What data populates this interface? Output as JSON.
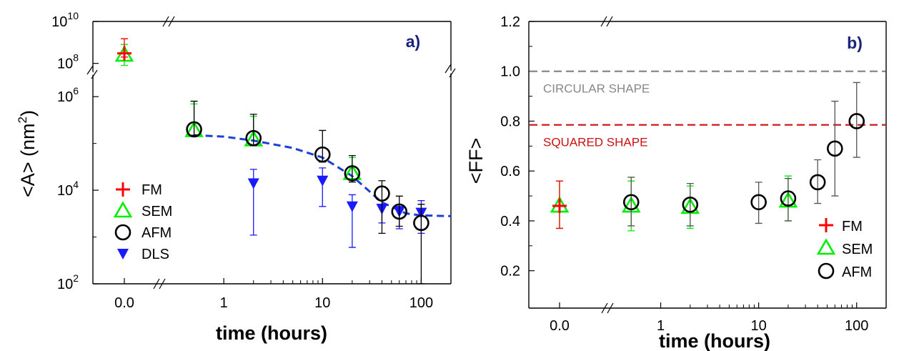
{
  "chart_data": [
    {
      "type": "scatter",
      "panel_label": "a)",
      "xlabel": "time (hours)",
      "ylabel": "<A> (nm",
      "ylabel_sup": "2",
      "ylabel_close": ")",
      "x_scale": "log",
      "x_axis_break": true,
      "x_zero_label": "0.0",
      "xlim": [
        0.25,
        200
      ],
      "x_ticks": [
        {
          "value": 1,
          "label": "1"
        },
        {
          "value": 10,
          "label": "10"
        },
        {
          "value": 100,
          "label": "100"
        }
      ],
      "y_scale": "log",
      "y_axis_break": true,
      "ylim_lower": [
        100,
        3000000
      ],
      "ylim_upper": [
        30000000,
        10000000000
      ],
      "y_ticks": [
        {
          "value": 100,
          "base": "10",
          "exp": "2"
        },
        {
          "value": 10000,
          "base": "10",
          "exp": "4"
        },
        {
          "value": 1000000,
          "base": "10",
          "exp": "6"
        },
        {
          "value": 100000000,
          "base": "10",
          "exp": "8"
        },
        {
          "value": 10000000000,
          "base": "10",
          "exp": "10"
        }
      ],
      "legend_position": "lower-left",
      "series": [
        {
          "name": "FM",
          "marker": "plus",
          "color": "#ff0000",
          "points": [
            {
              "x": 0,
              "y": 300000000,
              "yerr_low": 200000000,
              "yerr_high": 1500000000
            }
          ]
        },
        {
          "name": "SEM",
          "marker": "triangle-up",
          "color": "#00ee00",
          "points": [
            {
              "x": 0,
              "y": 250000000,
              "yerr_low": 80000000,
              "yerr_high": 800000000
            },
            {
              "x": 0.5,
              "y": 190000,
              "yerr_low": 140000,
              "yerr_high": 700000
            },
            {
              "x": 2,
              "y": 120000,
              "yerr_low": 90000,
              "yerr_high": 380000
            },
            {
              "x": 20,
              "y": 23000,
              "yerr_low": 15000,
              "yerr_high": 50000
            }
          ]
        },
        {
          "name": "AFM",
          "marker": "circle-open",
          "color": "#000000",
          "points": [
            {
              "x": 0.5,
              "y": 200000,
              "yerr_low": 150000,
              "yerr_high": 800000
            },
            {
              "x": 2,
              "y": 130000,
              "yerr_low": 90000,
              "yerr_high": 420000
            },
            {
              "x": 10,
              "y": 58000,
              "yerr_low": 40000,
              "yerr_high": 190000
            },
            {
              "x": 20,
              "y": 23000,
              "yerr_low": 15000,
              "yerr_high": 55000
            },
            {
              "x": 40,
              "y": 8500,
              "yerr_low": 1200,
              "yerr_high": 16000
            },
            {
              "x": 60,
              "y": 3500,
              "yerr_low": 1700,
              "yerr_high": 7500
            },
            {
              "x": 100,
              "y": 2000,
              "yerr_low": 100,
              "yerr_high": 5000
            }
          ]
        },
        {
          "name": "DLS",
          "marker": "triangle-down-filled",
          "color": "#1a1aff",
          "points": [
            {
              "x": 2,
              "y": 14000,
              "yerr_low": 1100,
              "yerr_high": 28000
            },
            {
              "x": 10,
              "y": 16000,
              "yerr_low": 4500,
              "yerr_high": 30000
            },
            {
              "x": 20,
              "y": 4500,
              "yerr_low": 600,
              "yerr_high": 8000
            },
            {
              "x": 40,
              "y": 4000,
              "yerr_low": 2000,
              "yerr_high": 5000
            },
            {
              "x": 60,
              "y": 3500,
              "yerr_low": 1500,
              "yerr_high": 4500
            },
            {
              "x": 100,
              "y": 3300,
              "yerr_low": 1200,
              "yerr_high": 6000
            }
          ]
        }
      ],
      "fit_curve": {
        "style": "dashed",
        "color": "#1c3fd6",
        "points": [
          {
            "x": 0.5,
            "y": 150000
          },
          {
            "x": 1,
            "y": 140000
          },
          {
            "x": 2,
            "y": 115000
          },
          {
            "x": 5,
            "y": 80000
          },
          {
            "x": 10,
            "y": 50000
          },
          {
            "x": 20,
            "y": 20000
          },
          {
            "x": 40,
            "y": 5500
          },
          {
            "x": 70,
            "y": 3200
          },
          {
            "x": 100,
            "y": 2900
          },
          {
            "x": 200,
            "y": 2800
          }
        ]
      }
    },
    {
      "type": "scatter",
      "panel_label": "b)",
      "xlabel": "time (hours)",
      "ylabel": "<FF>",
      "x_scale": "log",
      "x_axis_break": true,
      "x_zero_label": "0.0",
      "xlim": [
        0.25,
        200
      ],
      "x_ticks": [
        {
          "value": 1,
          "label": "1"
        },
        {
          "value": 10,
          "label": "10"
        },
        {
          "value": 100,
          "label": "100"
        }
      ],
      "y_scale": "linear",
      "ylim": [
        0.05,
        1.2
      ],
      "y_ticks": [
        {
          "value": 0.2,
          "label": "0.2"
        },
        {
          "value": 0.4,
          "label": "0.4"
        },
        {
          "value": 0.6,
          "label": "0.6"
        },
        {
          "value": 0.8,
          "label": "0.8"
        },
        {
          "value": 1.0,
          "label": "1.0"
        },
        {
          "value": 1.2,
          "label": "1.2"
        }
      ],
      "legend_position": "lower-right",
      "reference_lines": [
        {
          "y": 1.0,
          "label": "CIRCULAR SHAPE",
          "color": "#888888"
        },
        {
          "y": 0.785,
          "label": "SQUARED SHAPE",
          "color": "#cc1111"
        }
      ],
      "series": [
        {
          "name": "FM",
          "marker": "plus",
          "color": "#ff0000",
          "points": [
            {
              "x": 0,
              "y": 0.46,
              "yerr_low": 0.37,
              "yerr_high": 0.56
            }
          ]
        },
        {
          "name": "SEM",
          "marker": "triangle-up",
          "color": "#00ee00",
          "points": [
            {
              "x": 0,
              "y": 0.46,
              "yerr_low": 0.37,
              "yerr_high": 0.56
            },
            {
              "x": 0.5,
              "y": 0.46,
              "yerr_low": 0.36,
              "yerr_high": 0.56
            },
            {
              "x": 2,
              "y": 0.455,
              "yerr_low": 0.37,
              "yerr_high": 0.54
            },
            {
              "x": 20,
              "y": 0.48,
              "yerr_low": 0.4,
              "yerr_high": 0.58
            }
          ]
        },
        {
          "name": "AFM",
          "marker": "circle-open",
          "color": "#000000",
          "points": [
            {
              "x": 0.5,
              "y": 0.475,
              "yerr_low": 0.38,
              "yerr_high": 0.575
            },
            {
              "x": 2,
              "y": 0.465,
              "yerr_low": 0.38,
              "yerr_high": 0.55
            },
            {
              "x": 10,
              "y": 0.475,
              "yerr_low": 0.39,
              "yerr_high": 0.555
            },
            {
              "x": 20,
              "y": 0.49,
              "yerr_low": 0.4,
              "yerr_high": 0.57
            },
            {
              "x": 40,
              "y": 0.555,
              "yerr_low": 0.47,
              "yerr_high": 0.645
            },
            {
              "x": 60,
              "y": 0.69,
              "yerr_low": 0.5,
              "yerr_high": 0.88
            },
            {
              "x": 100,
              "y": 0.8,
              "yerr_low": 0.655,
              "yerr_high": 0.955
            }
          ]
        }
      ]
    }
  ]
}
